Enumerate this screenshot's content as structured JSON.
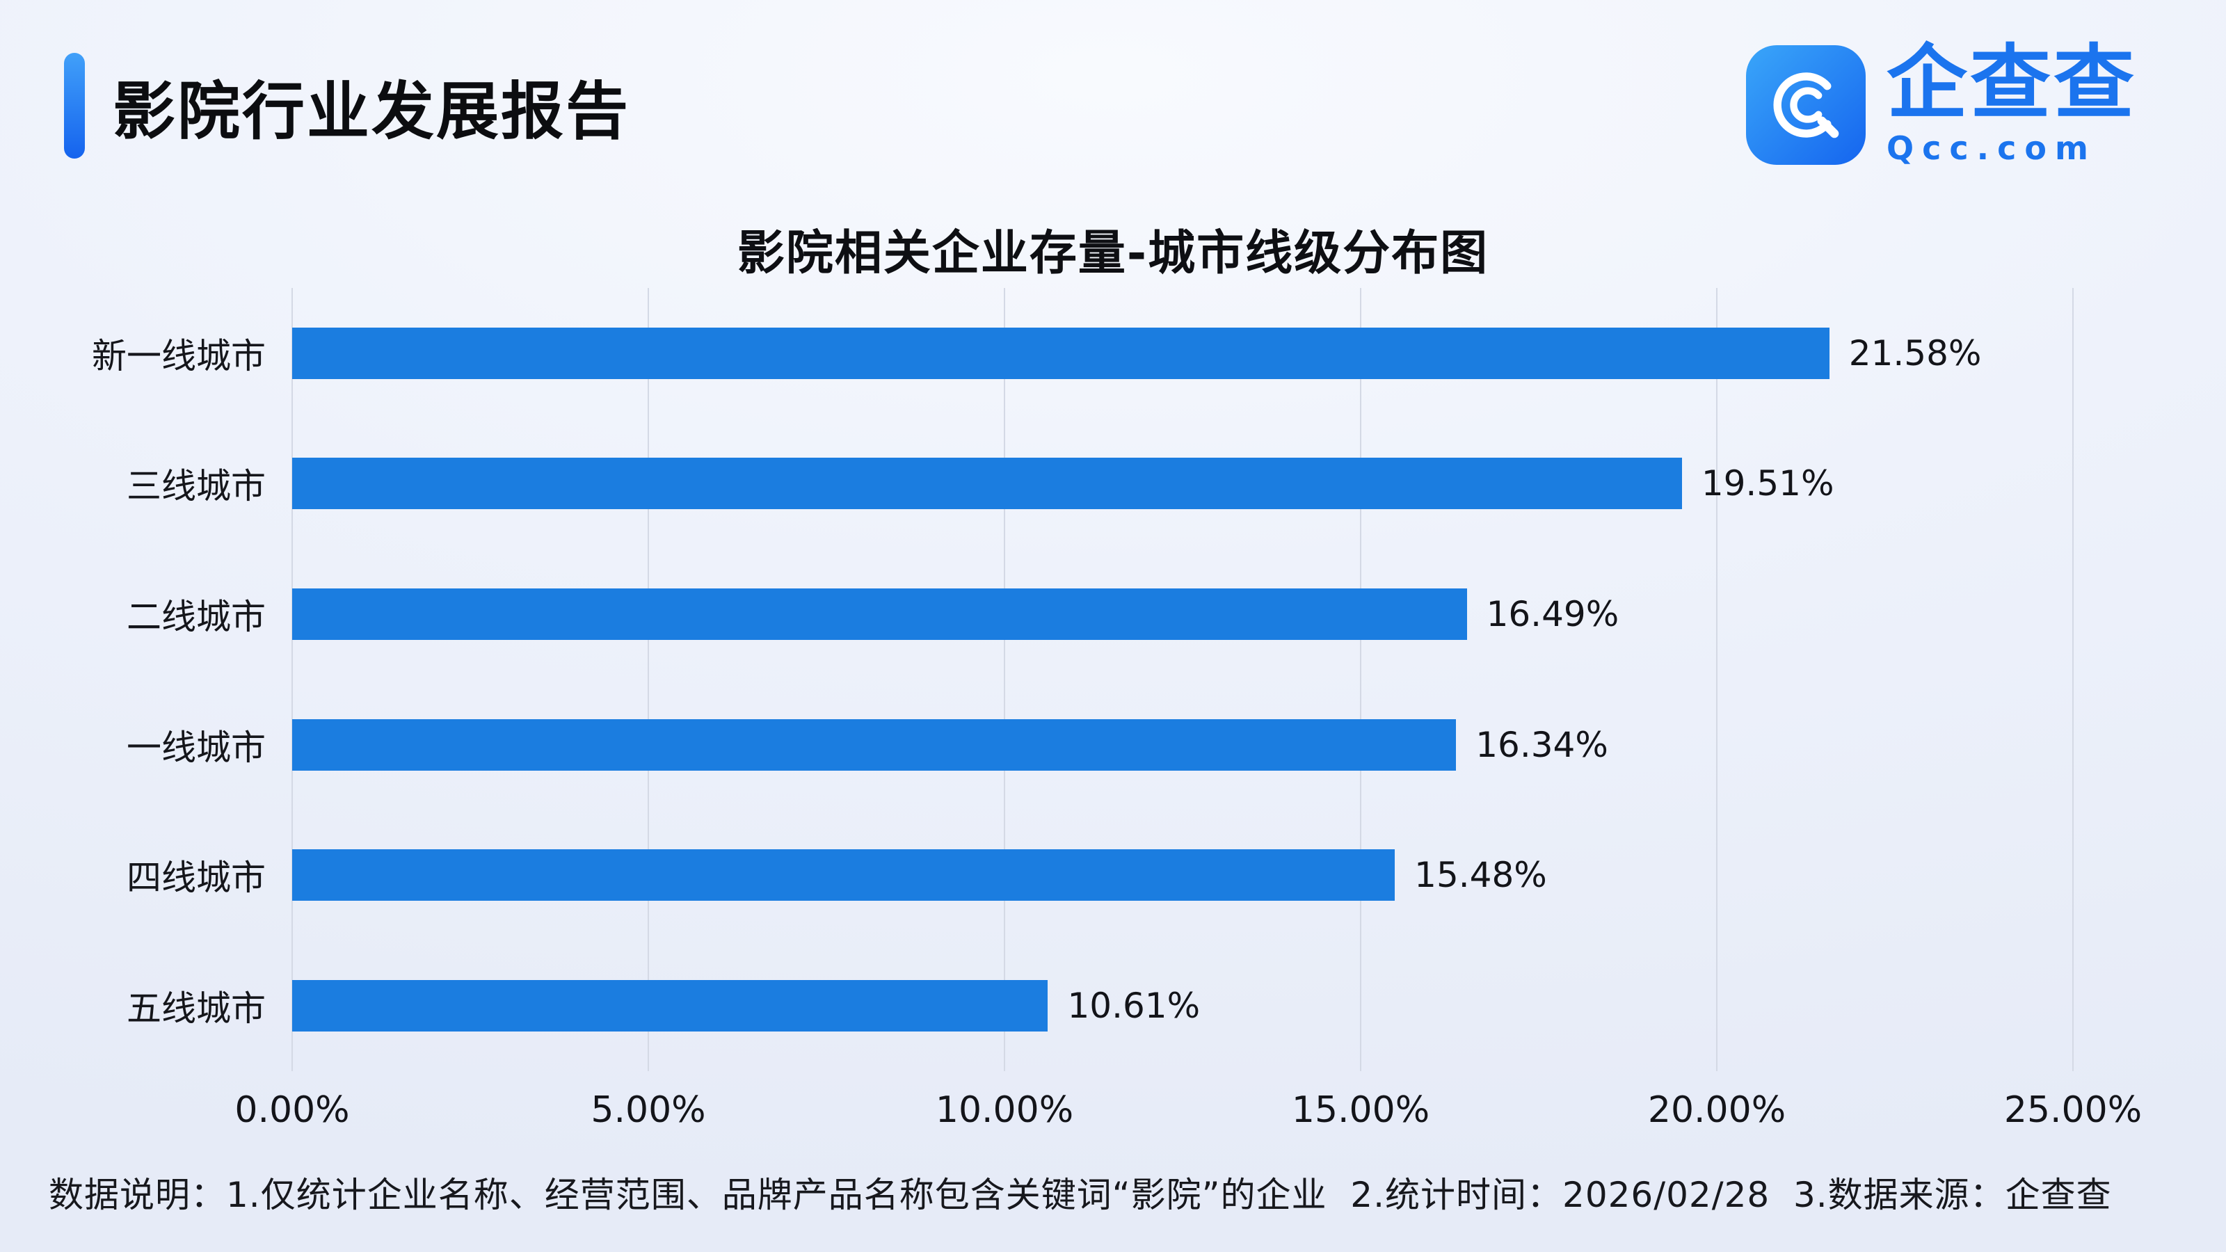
{
  "header": {
    "title": "影院行业发展报告"
  },
  "logo": {
    "name": "企查查",
    "domain": "Qcc.com",
    "brand_color": "#1b74ee"
  },
  "chart_data": {
    "type": "bar",
    "orientation": "horizontal",
    "title": "影院相关企业存量-城市线级分布图",
    "categories": [
      "新一线城市",
      "三线城市",
      "二线城市",
      "一线城市",
      "四线城市",
      "五线城市"
    ],
    "values": [
      21.58,
      19.51,
      16.49,
      16.34,
      15.48,
      10.61
    ],
    "value_labels": [
      "21.58%",
      "19.51%",
      "16.49%",
      "16.34%",
      "15.48%",
      "10.61%"
    ],
    "x_ticks": [
      "0.00%",
      "5.00%",
      "10.00%",
      "15.00%",
      "20.00%",
      "25.00%"
    ],
    "xlim": [
      0,
      25
    ],
    "xlabel": "",
    "ylabel": "",
    "bar_color": "#1b7de0",
    "grid": "vertical-only",
    "legend": "none"
  },
  "footer": {
    "text": "数据说明：1.仅统计企业名称、经营范围、品牌产品名称包含关键词“影院”的企业  2.统计时间：2026/02/28  3.数据来源：企查查"
  }
}
